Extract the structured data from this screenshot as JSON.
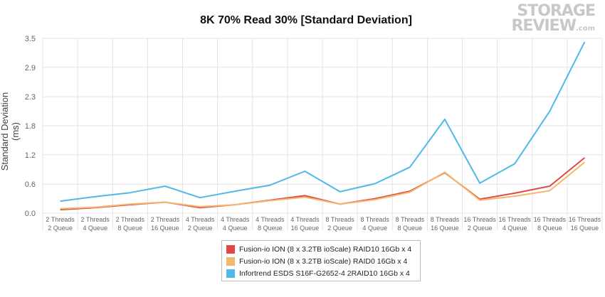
{
  "chart_data": {
    "type": "line",
    "title": "8K 70% Read 30% [Standard Deviation]",
    "xlabel": "",
    "ylabel": "Standard Deviation (ms)",
    "ylim": [
      0,
      3.5
    ],
    "yticks": [
      "0.0",
      "0.6",
      "1.2",
      "1.8",
      "2.3",
      "2.9",
      "3.5"
    ],
    "ytick_values": [
      0,
      0.58,
      1.17,
      1.75,
      2.33,
      2.92,
      3.5
    ],
    "grid": true,
    "legend_position": "bottom",
    "categories": [
      [
        "2 Threads",
        "2 Queue"
      ],
      [
        "2 Threads",
        "4 Queue"
      ],
      [
        "2 Threads",
        "8 Queue"
      ],
      [
        "2 Threads",
        "16 Queue"
      ],
      [
        "4 Threads",
        "2 Queue"
      ],
      [
        "4 Threads",
        "4 Queue"
      ],
      [
        "4 Threads",
        "8 Queue"
      ],
      [
        "4 Threads",
        "16 Queue"
      ],
      [
        "8 Threads",
        "2 Queue"
      ],
      [
        "8 Threads",
        "4 Queue"
      ],
      [
        "8 Threads",
        "8 Queue"
      ],
      [
        "8 Threads",
        "16 Queue"
      ],
      [
        "16 Threads",
        "2 Queue"
      ],
      [
        "16 Threads",
        "4 Queue"
      ],
      [
        "16 Threads",
        "8 Queue"
      ],
      [
        "16 Threads",
        "16 Queue"
      ]
    ],
    "series": [
      {
        "name": "Fusion-io ION (8 x 3.2TB ioScale) RAID10 16Gb x 4",
        "color": "#e04848",
        "values": [
          0.07,
          0.11,
          0.17,
          0.22,
          0.11,
          0.17,
          0.26,
          0.35,
          0.18,
          0.29,
          0.44,
          0.81,
          0.28,
          0.4,
          0.54,
          1.11
        ]
      },
      {
        "name": "Fusion-io ION (8 x 3.2TB ioScale) RAID0 16Gb x 4",
        "color": "#f2b86e",
        "values": [
          0.09,
          0.12,
          0.18,
          0.22,
          0.13,
          0.17,
          0.25,
          0.32,
          0.18,
          0.27,
          0.42,
          0.82,
          0.26,
          0.34,
          0.45,
          1.02
        ]
      },
      {
        "name": "Infortrend ESDS S16F-G2652-4 2RAID10 16Gb x 4",
        "color": "#4fb9e8",
        "values": [
          0.24,
          0.33,
          0.41,
          0.54,
          0.31,
          0.44,
          0.56,
          0.84,
          0.43,
          0.59,
          0.92,
          1.88,
          0.6,
          0.99,
          2.04,
          3.43
        ]
      }
    ]
  },
  "watermark": {
    "line1": "STORAGE",
    "line2": "REVIEW",
    "suffix": ".com"
  }
}
